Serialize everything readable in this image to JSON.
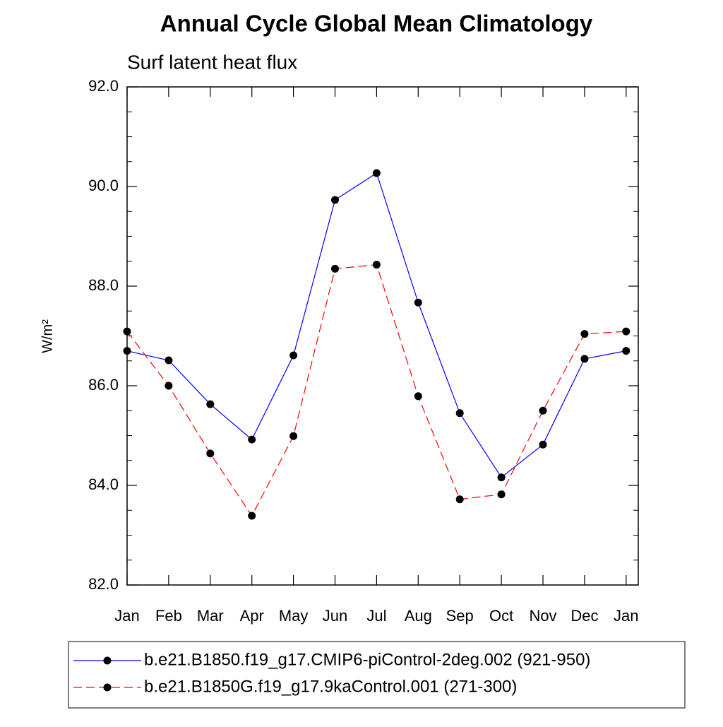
{
  "chart_data": {
    "type": "line",
    "title": "Annual Cycle Global Mean Climatology",
    "subtitle": "Surf latent heat flux",
    "y_label": "W/m²",
    "categories": [
      "Jan",
      "Feb",
      "Mar",
      "Apr",
      "May",
      "Jun",
      "Jul",
      "Aug",
      "Sep",
      "Oct",
      "Nov",
      "Dec",
      "Jan"
    ],
    "ylim": [
      82,
      92
    ],
    "yticks": [
      {
        "value": 82,
        "label": "82.0"
      },
      {
        "value": 84,
        "label": "84.0"
      },
      {
        "value": 86,
        "label": "86.0"
      },
      {
        "value": 88,
        "label": "88.0"
      },
      {
        "value": 90,
        "label": "90.0"
      },
      {
        "value": 92,
        "label": "92.0"
      }
    ],
    "series": [
      {
        "name": "b.e21.B1850.f19_g17.CMIP6-piControl-2deg.002 (921-950)",
        "color": "#0000ff",
        "dashed": false,
        "values": [
          86.7,
          86.51,
          85.63,
          84.92,
          86.61,
          89.73,
          90.27,
          87.67,
          85.45,
          84.16,
          84.82,
          86.54,
          86.7
        ]
      },
      {
        "name": "b.e21.B1850G.f19_g17.9kaControl.001 (271-300)",
        "color": "#ff0000",
        "dashed": true,
        "values": [
          87.09,
          86.0,
          84.64,
          83.39,
          84.99,
          88.35,
          88.43,
          85.79,
          83.72,
          83.82,
          85.5,
          87.04,
          87.09
        ]
      }
    ]
  }
}
